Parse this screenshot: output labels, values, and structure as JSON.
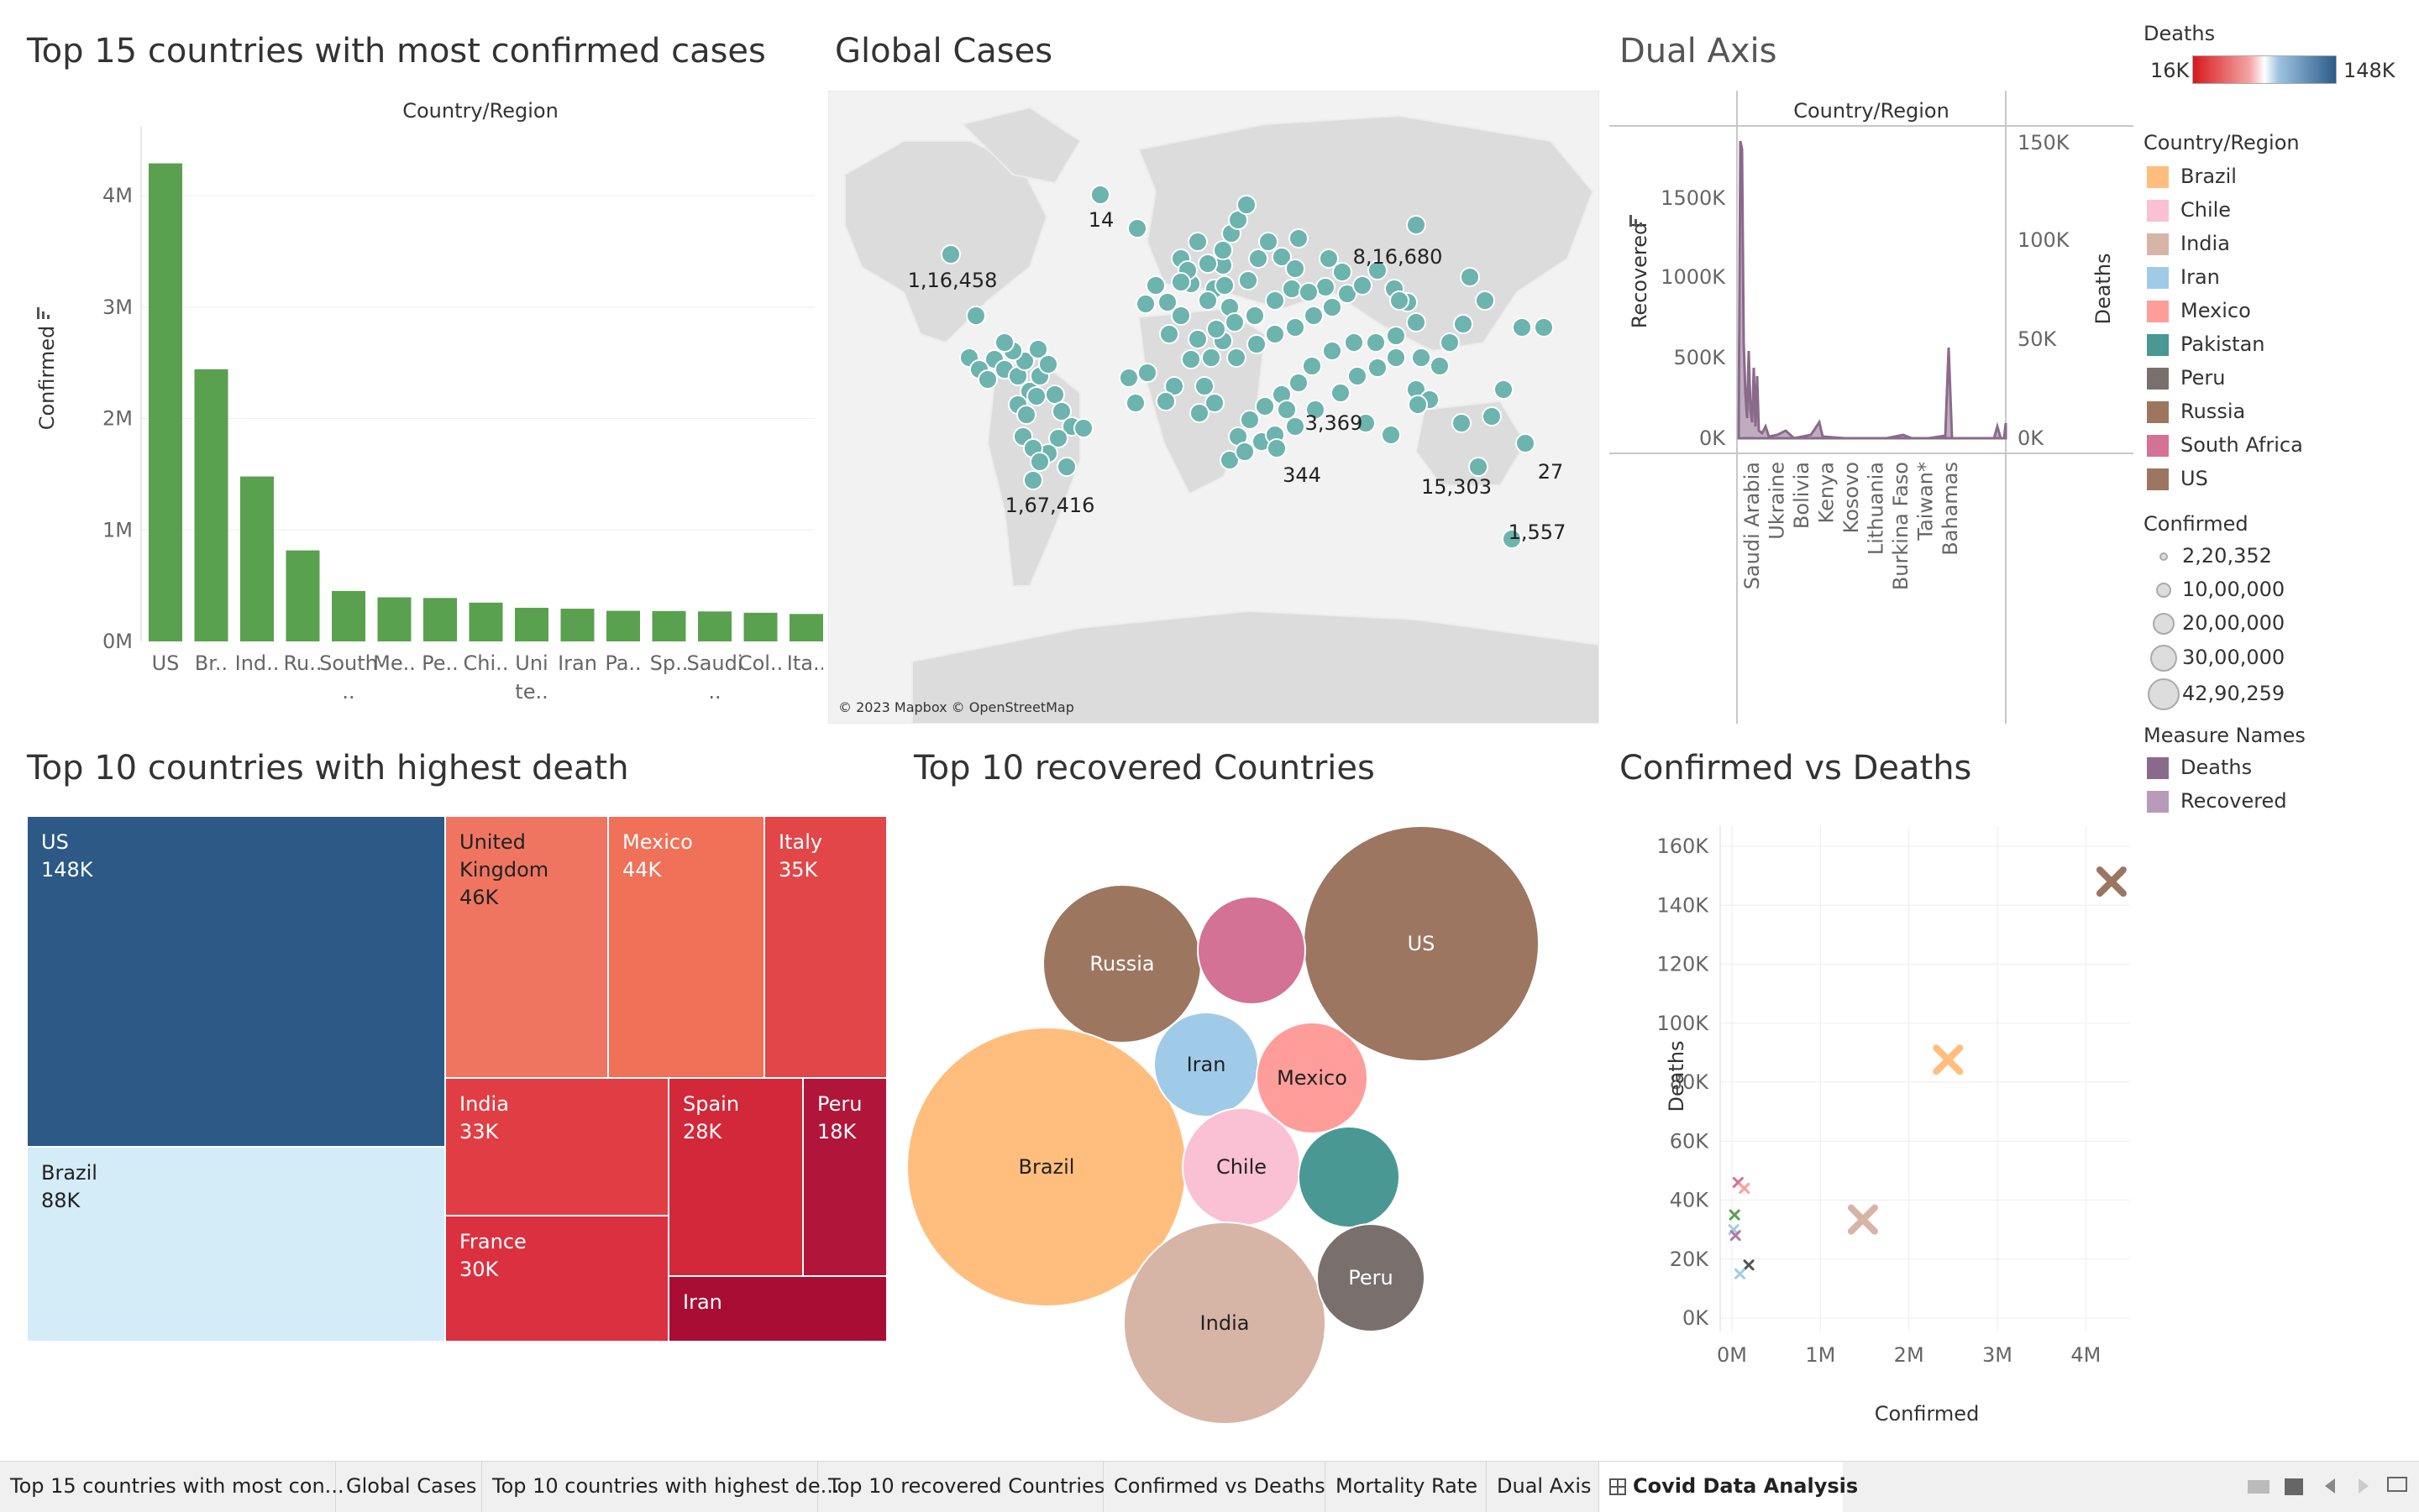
{
  "dashboard": {
    "bar_panel": {
      "title": "Top 15 countries with most confirmed cases",
      "header": "Country/Region",
      "ylabel": "Confirmed",
      "yticks": [
        "4M",
        "3M",
        "2M",
        "1M",
        "0M"
      ]
    },
    "map_panel": {
      "title": "Global Cases",
      "attribution": "© 2023 Mapbox © OpenStreetMap",
      "labels": [
        "14",
        "1,16,458",
        "8,16,680",
        "3,369",
        "344",
        "1,67,416",
        "15,303",
        "27",
        "1,557"
      ]
    },
    "dual_panel": {
      "title": "Dual Axis",
      "header": "Country/Region",
      "left_label": "Recovered",
      "right_label": "Deaths",
      "left_ticks": [
        "1500K",
        "1000K",
        "500K",
        "0K"
      ],
      "right_ticks": [
        "150K",
        "100K",
        "50K",
        "0K"
      ],
      "countries": [
        "Saudi Arabia",
        "Ukraine",
        "Bolivia",
        "Kenya",
        "Kosovo",
        "Lithuania",
        "Burkina Faso",
        "Taiwan*",
        "Bahamas"
      ]
    },
    "treemap_panel": {
      "title": "Top 10 countries with highest death",
      "cells": [
        {
          "name": "US",
          "value": "148K"
        },
        {
          "name": "Brazil",
          "value": "88K"
        },
        {
          "name": "United Kingdom",
          "value": "46K"
        },
        {
          "name": "Mexico",
          "value": "44K"
        },
        {
          "name": "Italy",
          "value": "35K"
        },
        {
          "name": "India",
          "value": "33K"
        },
        {
          "name": "Spain",
          "value": "28K"
        },
        {
          "name": "Peru",
          "value": "18K"
        },
        {
          "name": "France",
          "value": "30K"
        },
        {
          "name": "Iran",
          "value": ""
        }
      ]
    },
    "bubble_panel": {
      "title": "Top 10 recovered Countries",
      "labels": [
        "US",
        "Russia",
        "Brazil",
        "Iran",
        "Mexico",
        "Chile",
        "India",
        "Peru"
      ]
    },
    "scatter_panel": {
      "title": "Confirmed vs Deaths",
      "xlabel": "Confirmed",
      "ylabel": "Deaths",
      "xticks": [
        "0M",
        "1M",
        "2M",
        "3M",
        "4M"
      ],
      "yticks": [
        "160K",
        "140K",
        "120K",
        "100K",
        "80K",
        "60K",
        "40K",
        "20K",
        "0K"
      ]
    }
  },
  "legend": {
    "deaths_title": "Deaths",
    "deaths_min": "16K",
    "deaths_max": "148K",
    "country_title": "Country/Region",
    "countries": [
      {
        "name": "Brazil",
        "color": "#ffbe7d"
      },
      {
        "name": "Chile",
        "color": "#f9c1d3"
      },
      {
        "name": "India",
        "color": "#d7b5a6"
      },
      {
        "name": "Iran",
        "color": "#a0cbe8"
      },
      {
        "name": "Mexico",
        "color": "#ff9d9a"
      },
      {
        "name": "Pakistan",
        "color": "#499894"
      },
      {
        "name": "Peru",
        "color": "#79706e"
      },
      {
        "name": "Russia",
        "color": "#9d7660"
      },
      {
        "name": "South Africa",
        "color": "#d37295"
      },
      {
        "name": "US",
        "color": "#9c7660"
      }
    ],
    "confirmed_title": "Confirmed",
    "confirmed_sizes": [
      "2,20,352",
      "10,00,000",
      "20,00,000",
      "30,00,000",
      "42,90,259"
    ],
    "measure_title": "Measure Names",
    "measures": [
      {
        "name": "Deaths",
        "color": "#8a6a8a"
      },
      {
        "name": "Recovered",
        "color": "#b89bb8"
      }
    ]
  },
  "tabs": [
    {
      "label": "Top 15 countries with most con..."
    },
    {
      "label": "Global Cases"
    },
    {
      "label": "Top 10 countries with highest de..."
    },
    {
      "label": "Top 10 recovered Countries"
    },
    {
      "label": "Confirmed vs Deaths"
    },
    {
      "label": "Mortality Rate"
    },
    {
      "label": "Dual Axis"
    },
    {
      "label": "Covid Data Analysis"
    }
  ],
  "colors": {
    "bar": "#59a14f",
    "map_dot": "#6db3ae",
    "dual_line": "#8a6a8a"
  },
  "chart_data": [
    {
      "type": "bar",
      "title": "Top 15 countries with most confirmed cases",
      "xlabel": "Country/Region",
      "ylabel": "Confirmed",
      "categories": [
        "US",
        "Br..",
        "Ind..",
        "Ru..",
        "Sou th ..",
        "Me..",
        "Pe..",
        "Chi..",
        "Uni te..",
        "Iran",
        "Pa..",
        "Sp..",
        "Sau di ..",
        "Col..",
        "Ita.."
      ],
      "values": [
        4290259,
        2442375,
        1480073,
        816680,
        452529,
        395489,
        389717,
        347923,
        301708,
        293606,
        274289,
        272421,
        268934,
        257101,
        246286
      ],
      "ylim": [
        0,
        4400000
      ]
    },
    {
      "type": "scatter",
      "title": "Confirmed vs Deaths",
      "xlabel": "Confirmed",
      "ylabel": "Deaths",
      "xlim": [
        0,
        4500000
      ],
      "ylim": [
        0,
        160000
      ],
      "points": [
        {
          "name": "US",
          "x": 4290259,
          "y": 148011,
          "color": "#9c7660",
          "big": true
        },
        {
          "name": "Brazil",
          "x": 2442375,
          "y": 87618,
          "color": "#ffbe7d",
          "big": true
        },
        {
          "name": "India",
          "x": 1480073,
          "y": 33408,
          "color": "#d7b5a6",
          "big": true
        },
        {
          "name": "South Africa",
          "x": 70000,
          "y": 46000,
          "color": "#d37295",
          "big": false
        },
        {
          "name": "Mexico",
          "x": 140000,
          "y": 44000,
          "color": "#ff9d9a",
          "big": false
        },
        {
          "name": "Pakistan",
          "x": 30000,
          "y": 35000,
          "color": "#59a14f",
          "big": false
        },
        {
          "name": "Iran",
          "x": 20000,
          "y": 30000,
          "color": "#a0cbe8",
          "big": false
        },
        {
          "name": "Chile",
          "x": 40000,
          "y": 28000,
          "color": "#b07aa1",
          "big": false
        },
        {
          "name": "Peru",
          "x": 190000,
          "y": 18000,
          "color": "#555555",
          "big": false
        },
        {
          "name": "Russia",
          "x": 90000,
          "y": 15000,
          "color": "#a0cbe8",
          "big": false
        }
      ]
    }
  ]
}
